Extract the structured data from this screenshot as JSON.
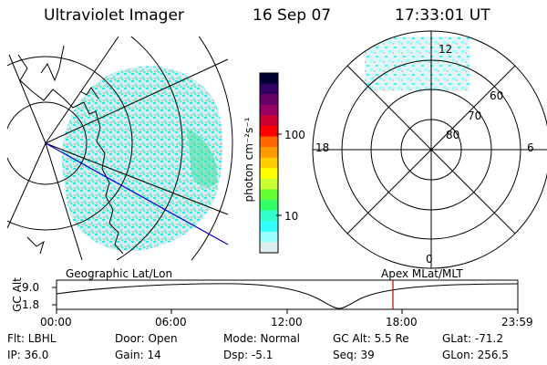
{
  "header": {
    "instrument": "Ultraviolet Imager",
    "date": "16 Sep 07",
    "time": "17:33:01 UT"
  },
  "geo_panel": {
    "label": "Geographic Lat/Lon"
  },
  "colorbar": {
    "unit_label": "photon cm⁻²s⁻¹",
    "ticks": [
      "100",
      "10"
    ],
    "colors": [
      "#000033",
      "#330066",
      "#660066",
      "#990066",
      "#cc0033",
      "#ff0000",
      "#ff6600",
      "#ff9900",
      "#ffcc00",
      "#ffff00",
      "#ccff33",
      "#66ff33",
      "#33ff66",
      "#33ffcc",
      "#33ffff",
      "#99ffff",
      "#ddeeee"
    ]
  },
  "polar_panel": {
    "label": "Apex MLat/MLT",
    "lat_labels": [
      "60",
      "70",
      "80"
    ],
    "mlt_labels": [
      "12",
      "18",
      "6",
      "0"
    ]
  },
  "altitude_plot": {
    "ylabel": "GC Alt",
    "yticks": [
      "9.0",
      "1.8"
    ],
    "xticks": [
      "00:00",
      "06:00",
      "12:00",
      "18:00",
      "23:59"
    ],
    "marker_color": "#cc0000"
  },
  "info": {
    "filter": "Flt: LBHL",
    "ip": "IP: 36.0",
    "door": "Door: Open",
    "gain": "Gain: 14",
    "mode": "Mode: Normal",
    "dsp": "Dsp:    -5.1",
    "gc_alt": "GC Alt: 5.5 Re",
    "seq": "Seq: 39",
    "glat": "GLat: -71.2",
    "glon": "GLon: 256.5"
  }
}
